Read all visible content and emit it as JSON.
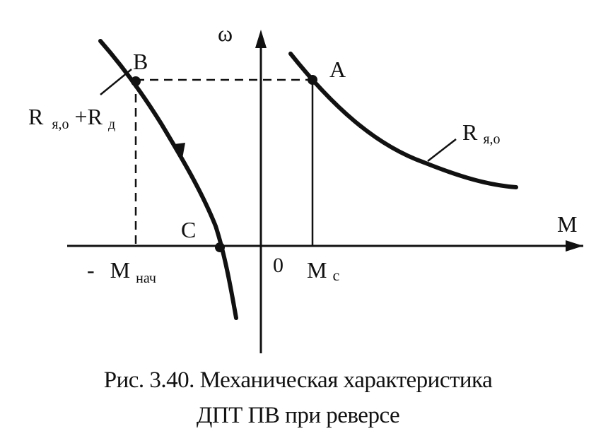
{
  "axes": {
    "y_label": "ω",
    "x_label": "M",
    "origin_label": "0"
  },
  "points": {
    "A": "A",
    "B": "B",
    "C": "C"
  },
  "torque_labels": {
    "minus": "-",
    "m_start_main": "M",
    "m_start_sub": "нач",
    "m_c_main": "M",
    "m_c_sub": "с"
  },
  "curves": {
    "natural_main": "R",
    "natural_sub": "я,о",
    "reverse_main_1": "R",
    "reverse_sub_1": "я,о",
    "reverse_plus": "+R",
    "reverse_sub_2": "д"
  },
  "caption": {
    "line1": "Рис. 3.40. Механическая характеристика",
    "line2": "ДПТ ПВ при реверсе"
  }
}
